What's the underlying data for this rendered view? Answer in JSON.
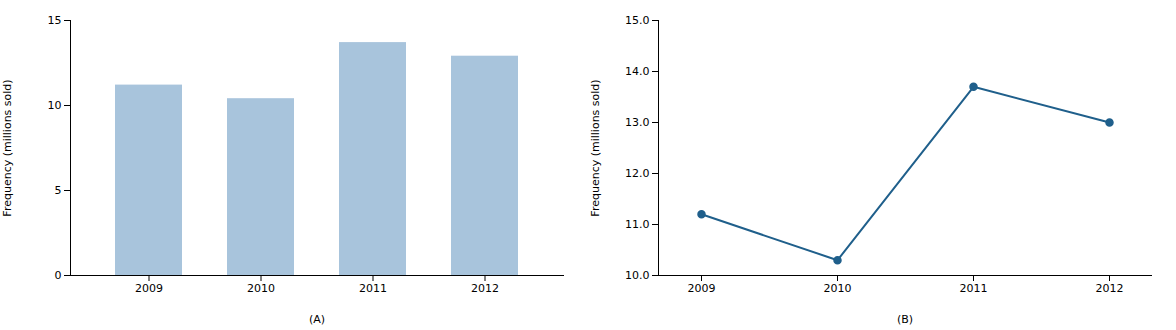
{
  "chart_data": [
    {
      "type": "bar",
      "x_label": "(A)",
      "y_label": "Frequency (millions sold)",
      "categories": [
        "2009",
        "2010",
        "2011",
        "2012"
      ],
      "values": [
        11.2,
        10.4,
        13.7,
        12.9
      ],
      "color": "#a8c4dc",
      "ylim": [
        0,
        15
      ],
      "yticks": [
        0,
        5,
        10,
        15
      ],
      "grid": false
    },
    {
      "type": "line",
      "x_label": "(B)",
      "y_label": "Frequency (millions sold)",
      "categories": [
        "2009",
        "2010",
        "2011",
        "2012"
      ],
      "values": [
        11.2,
        10.3,
        13.7,
        13.0
      ],
      "color": "#1f5f8b",
      "marker": "circle",
      "ylim": [
        10,
        15
      ],
      "yticks": [
        10,
        11,
        12,
        13,
        14,
        15
      ],
      "grid": false
    }
  ]
}
